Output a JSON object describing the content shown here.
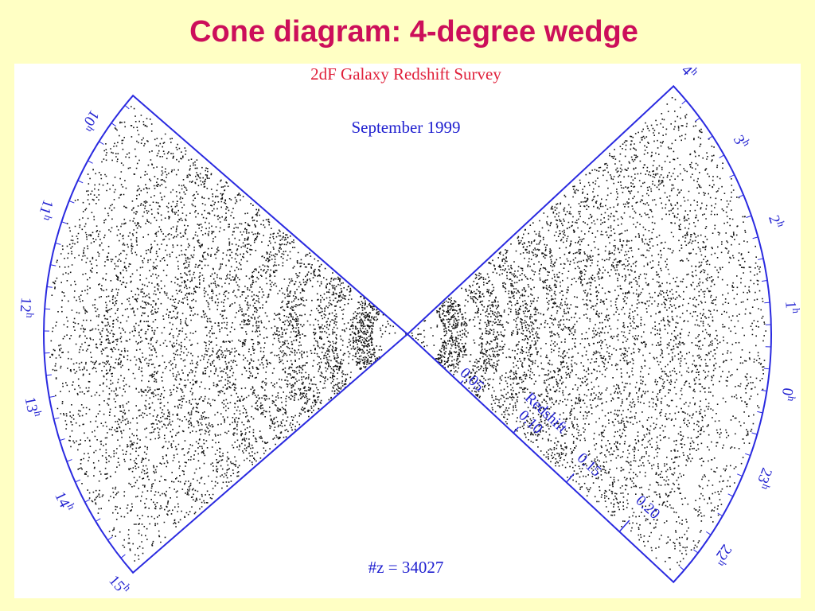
{
  "slide": {
    "title": "Cone diagram: 4-degree wedge"
  },
  "figure": {
    "survey": "2dF Galaxy Redshift Survey",
    "date": "September 1999",
    "count": "#z = 34027",
    "hour_unit": "h",
    "left_hours": [
      "10",
      "11",
      "12",
      "13",
      "14",
      "15"
    ],
    "right_hours": [
      "4",
      "3",
      "2",
      "1",
      "0",
      "23",
      "22"
    ],
    "redshift_ticks": [
      "0.05",
      "0.10",
      "0.15",
      "0.20"
    ],
    "redshift_label": "Redshift"
  }
}
